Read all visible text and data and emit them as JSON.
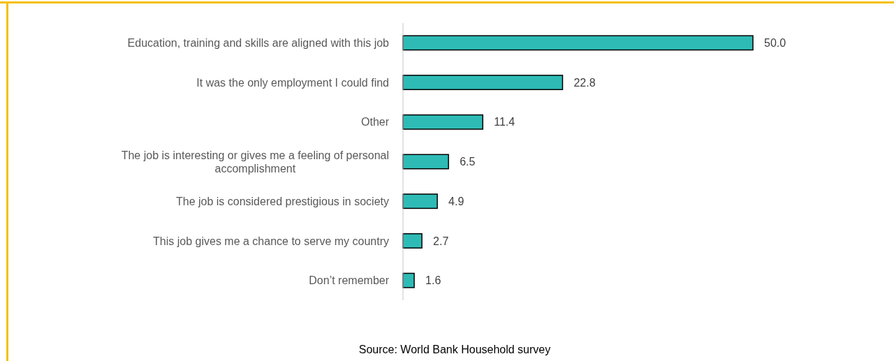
{
  "chart_data": {
    "type": "bar",
    "orientation": "horizontal",
    "value_labels": [
      "50.0",
      "22.8",
      "11.4",
      "6.5",
      "4.9",
      "2.7",
      "1.6"
    ],
    "categories": [
      "Education, training and skills are aligned with this job",
      "It was the only employment I could find",
      "Other",
      "The job is interesting or gives me a feeling of personal accomplishment",
      "The job is considered prestigious in society",
      "This job gives me a chance to serve my country",
      "Don’t remember"
    ],
    "values": [
      50.0,
      22.8,
      11.4,
      6.5,
      4.9,
      2.7,
      1.6
    ],
    "color": "#2ebbb6",
    "annotations": [
      "Source: World Bank Household survey"
    ]
  }
}
